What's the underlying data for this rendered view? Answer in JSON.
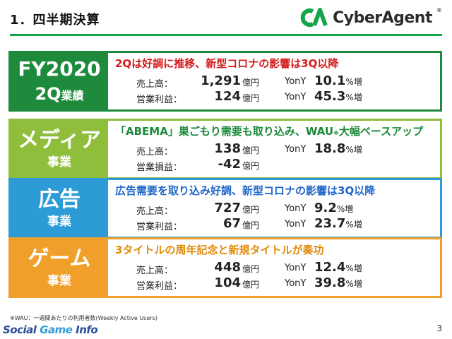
{
  "header": {
    "title": "1．四半期決算",
    "brand": "CyberAgent",
    "brand_mark": "®"
  },
  "sections": [
    {
      "tag_main": "FY2020",
      "tag_sub_main": "2Q",
      "tag_sub_small": "業績",
      "headline": "2Qは好調に推移、新型コロナの影響は3Q以降",
      "rows": [
        {
          "label": "売上高：",
          "value": "1,291",
          "unit": "億円",
          "yony": "YonY",
          "pct": "10.1",
          "pct_unit": "%増"
        },
        {
          "label": "営業利益：",
          "value": "124",
          "unit": "億円",
          "yony": "YonY",
          "pct": "45.3",
          "pct_unit": "%増"
        }
      ]
    },
    {
      "tag_main": "メディア",
      "tag_sub": "事業",
      "headline_pre": "「ABEMA」巣ごもり需要も取り込み、WAU",
      "headline_mark": "※",
      "headline_post": "大幅ベースアップ",
      "rows": [
        {
          "label": "売上高：",
          "value": "138",
          "unit": "億円",
          "yony": "YonY",
          "pct": "18.8",
          "pct_unit": "%増"
        },
        {
          "label": "営業損益：",
          "value": "-42",
          "unit": "億円"
        }
      ]
    },
    {
      "tag_main": "広告",
      "tag_sub": "事業",
      "headline": "広告需要を取り込み好調、新型コロナの影響は3Q以降",
      "rows": [
        {
          "label": "売上高：",
          "value": "727",
          "unit": "億円",
          "yony": "YonY",
          "pct": "9.2",
          "pct_unit": "%増"
        },
        {
          "label": "営業利益：",
          "value": "67",
          "unit": "億円",
          "yony": "YonY",
          "pct": "23.7",
          "pct_unit": "%増"
        }
      ]
    },
    {
      "tag_main": "ゲーム",
      "tag_sub": "事業",
      "headline": "3タイトルの周年記念と新規タイトルが奏功",
      "rows": [
        {
          "label": "売上高：",
          "value": "448",
          "unit": "億円",
          "yony": "YonY",
          "pct": "12.4",
          "pct_unit": "%増"
        },
        {
          "label": "営業利益：",
          "value": "104",
          "unit": "億円",
          "yony": "YonY",
          "pct": "39.8",
          "pct_unit": "%増"
        }
      ]
    }
  ],
  "footnote": "※WAU：一週間あたりの利用者数(Weekly Active Users)",
  "watermark": {
    "part1": "Social ",
    "part2": "Game",
    "part3": " Info"
  },
  "page_number": "3",
  "colors": {
    "fy": "#1e8a3c",
    "media": "#8fbe3c",
    "ad": "#2c9bd6",
    "game": "#f0a02a",
    "rule": "#14a64a"
  }
}
